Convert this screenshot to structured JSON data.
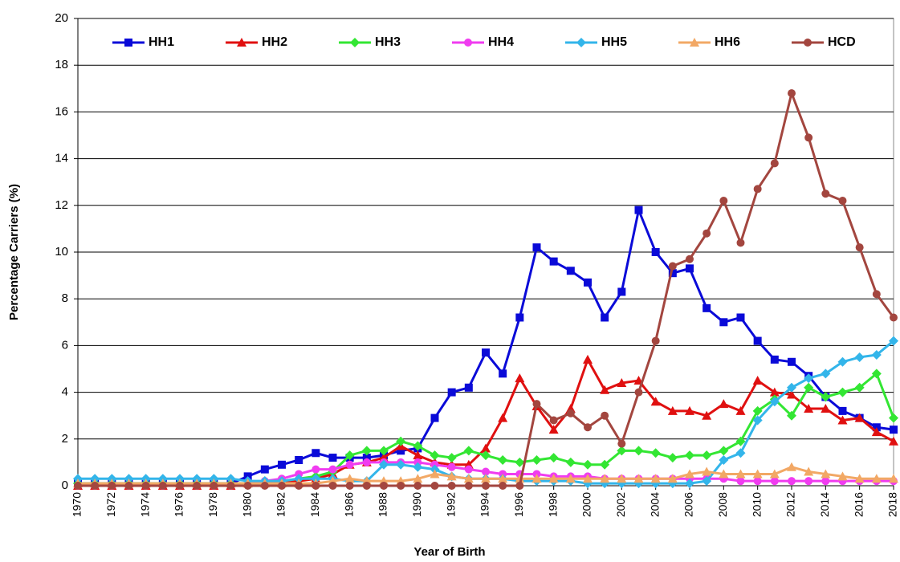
{
  "chart_data": {
    "type": "line",
    "xlabel": "Year of Birth",
    "ylabel": "Percentage Carriers (%)",
    "x": [
      1970,
      1971,
      1972,
      1973,
      1974,
      1975,
      1976,
      1977,
      1978,
      1979,
      1980,
      1981,
      1982,
      1983,
      1984,
      1985,
      1986,
      1987,
      1988,
      1989,
      1990,
      1991,
      1992,
      1993,
      1994,
      1995,
      1996,
      1997,
      1998,
      1999,
      2000,
      2001,
      2002,
      2003,
      2004,
      2005,
      2006,
      2007,
      2008,
      2009,
      2010,
      2011,
      2012,
      2013,
      2014,
      2015,
      2016,
      2017,
      2018
    ],
    "xlim": [
      1970,
      2018
    ],
    "xticks": [
      1970,
      1972,
      1974,
      1976,
      1978,
      1980,
      1982,
      1984,
      1986,
      1988,
      1990,
      1992,
      1994,
      1996,
      1998,
      2000,
      2002,
      2004,
      2006,
      2008,
      2010,
      2012,
      2014,
      2016,
      2018
    ],
    "ylim": [
      0,
      20
    ],
    "yticks": [
      0,
      2,
      4,
      6,
      8,
      10,
      12,
      14,
      16,
      18,
      20
    ],
    "grid": true,
    "legend": "top",
    "series": [
      {
        "name": "HH1",
        "color": "#0a0ad8",
        "marker": "square",
        "values": [
          0.1,
          0.1,
          0.1,
          0.1,
          0.1,
          0.1,
          0.1,
          0.1,
          0.1,
          0.1,
          0.4,
          0.7,
          0.9,
          1.1,
          1.4,
          1.2,
          1.2,
          1.2,
          1.3,
          1.5,
          1.6,
          2.9,
          4.0,
          4.2,
          5.7,
          4.8,
          7.2,
          10.2,
          9.6,
          9.2,
          8.7,
          7.2,
          8.3,
          11.8,
          10.0,
          9.1,
          9.3,
          7.6,
          7.0,
          7.2,
          6.2,
          5.4,
          5.3,
          4.7,
          3.8,
          3.2,
          2.9,
          2.5,
          2.4
        ]
      },
      {
        "name": "HH2",
        "color": "#e01010",
        "marker": "triangle",
        "values": [
          0,
          0,
          0,
          0,
          0,
          0,
          0,
          0,
          0,
          0,
          0.1,
          0.1,
          0.2,
          0.2,
          0.3,
          0.5,
          0.9,
          1.0,
          1.2,
          1.7,
          1.3,
          1.0,
          0.9,
          0.9,
          1.6,
          2.9,
          4.6,
          3.4,
          2.4,
          3.3,
          5.4,
          4.1,
          4.4,
          4.5,
          3.6,
          3.2,
          3.2,
          3.0,
          3.5,
          3.2,
          4.5,
          4.0,
          3.9,
          3.3,
          3.3,
          2.8,
          2.9,
          2.3,
          1.9
        ]
      },
      {
        "name": "HH3",
        "color": "#33e633",
        "marker": "diamond",
        "values": [
          0.1,
          0.1,
          0.1,
          0.1,
          0.1,
          0.1,
          0.1,
          0.1,
          0.1,
          0.1,
          0.1,
          0.2,
          0.2,
          0.3,
          0.4,
          0.6,
          1.3,
          1.5,
          1.5,
          1.9,
          1.7,
          1.3,
          1.2,
          1.5,
          1.3,
          1.1,
          1.0,
          1.1,
          1.2,
          1.0,
          0.9,
          0.9,
          1.5,
          1.5,
          1.4,
          1.2,
          1.3,
          1.3,
          1.5,
          1.9,
          3.2,
          3.7,
          3.0,
          4.2,
          3.8,
          4.0,
          4.2,
          4.8,
          2.9
        ]
      },
      {
        "name": "HH4",
        "color": "#f03cf0",
        "marker": "circle",
        "values": [
          0,
          0,
          0,
          0,
          0,
          0,
          0,
          0,
          0,
          0,
          0.1,
          0.2,
          0.3,
          0.5,
          0.7,
          0.7,
          0.9,
          1.0,
          1.0,
          1.0,
          1.0,
          0.9,
          0.8,
          0.7,
          0.6,
          0.5,
          0.5,
          0.5,
          0.4,
          0.4,
          0.4,
          0.3,
          0.3,
          0.3,
          0.3,
          0.3,
          0.3,
          0.3,
          0.3,
          0.2,
          0.2,
          0.2,
          0.2,
          0.2,
          0.2,
          0.2,
          0.2,
          0.2,
          0.2
        ]
      },
      {
        "name": "HH5",
        "color": "#33b5ea",
        "marker": "diamond",
        "values": [
          0.3,
          0.3,
          0.3,
          0.3,
          0.3,
          0.3,
          0.3,
          0.3,
          0.3,
          0.3,
          0.2,
          0.2,
          0.2,
          0.3,
          0.3,
          0.3,
          0.2,
          0.2,
          0.9,
          0.9,
          0.8,
          0.7,
          0.4,
          0.3,
          0.3,
          0.3,
          0.2,
          0.2,
          0.2,
          0.2,
          0.1,
          0.1,
          0.1,
          0.1,
          0.1,
          0.1,
          0.1,
          0.2,
          1.1,
          1.4,
          2.8,
          3.6,
          4.2,
          4.6,
          4.8,
          5.3,
          5.5,
          5.6,
          6.2
        ]
      },
      {
        "name": "HH6",
        "color": "#f2a865",
        "marker": "triangle",
        "values": [
          0.1,
          0.1,
          0.1,
          0.1,
          0.1,
          0.1,
          0.1,
          0.1,
          0.1,
          0.1,
          0.1,
          0.1,
          0.1,
          0.1,
          0.1,
          0.2,
          0.3,
          0.2,
          0.2,
          0.2,
          0.3,
          0.5,
          0.4,
          0.3,
          0.3,
          0.3,
          0.3,
          0.3,
          0.3,
          0.3,
          0.3,
          0.3,
          0.3,
          0.3,
          0.3,
          0.3,
          0.5,
          0.6,
          0.5,
          0.5,
          0.5,
          0.5,
          0.8,
          0.6,
          0.5,
          0.4,
          0.3,
          0.3,
          0.3
        ]
      },
      {
        "name": "HCD",
        "color": "#a3463f",
        "marker": "circle",
        "values": [
          0,
          0,
          0,
          0,
          0,
          0,
          0,
          0,
          0,
          0,
          0,
          0,
          0,
          0,
          0,
          0,
          0,
          0,
          0,
          0,
          0,
          0,
          0,
          0,
          0,
          0,
          0,
          3.5,
          2.8,
          3.1,
          2.5,
          3.0,
          1.8,
          4.0,
          6.2,
          9.4,
          9.7,
          10.8,
          12.2,
          10.4,
          12.7,
          13.8,
          16.8,
          14.9,
          12.5,
          12.2,
          10.2,
          8.2,
          7.2
        ]
      }
    ]
  }
}
